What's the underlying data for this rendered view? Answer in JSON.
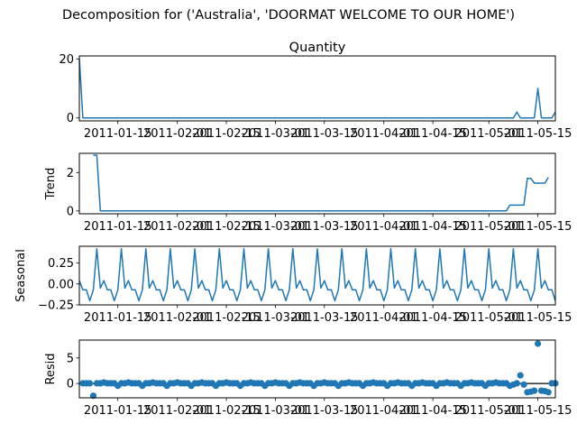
{
  "chart_data": {
    "type": "line",
    "title": "Decomposition for ('Australia', 'DOORMAT WELCOME TO OUR HOME')",
    "subtitle": "Quantity",
    "x_range": [
      "2011-01-04",
      "2011-05-20"
    ],
    "x_ticks": [
      "2011-01-15",
      "2011-02-01",
      "2011-02-15",
      "2011-03-01",
      "2011-03-15",
      "2011-04-01",
      "2011-04-15",
      "2011-05-01",
      "2011-05-15"
    ],
    "color": "#1f77b4",
    "grid": false,
    "panels": [
      {
        "name": "observed",
        "ylabel": "",
        "style": "line",
        "ylim": [
          -1,
          21
        ],
        "yticks": [
          "0",
          "20"
        ],
        "series": [
          {
            "x": "2011-01-04",
            "y": 20
          },
          {
            "x": "2011-01-05",
            "y": 0
          },
          {
            "x": "2011-05-08",
            "y": 0
          },
          {
            "x": "2011-05-09",
            "y": 2
          },
          {
            "x": "2011-05-10",
            "y": 0
          },
          {
            "x": "2011-05-14",
            "y": 0
          },
          {
            "x": "2011-05-15",
            "y": 10
          },
          {
            "x": "2011-05-16",
            "y": 0
          },
          {
            "x": "2011-05-19",
            "y": 0
          },
          {
            "x": "2011-05-20",
            "y": 2
          }
        ]
      },
      {
        "name": "trend",
        "ylabel": "Trend",
        "style": "line",
        "ylim": [
          -0.15,
          3.0
        ],
        "yticks": [
          "0",
          "2"
        ],
        "series": [
          {
            "x": "2011-01-08",
            "y": 2.9
          },
          {
            "x": "2011-01-10",
            "y": 0
          },
          {
            "x": "2011-05-06",
            "y": 0
          },
          {
            "x": "2011-05-07",
            "y": 0.3
          },
          {
            "x": "2011-05-11",
            "y": 0.3
          },
          {
            "x": "2011-05-12",
            "y": 1.7
          },
          {
            "x": "2011-05-13",
            "y": 1.7
          },
          {
            "x": "2011-05-14",
            "y": 1.45
          },
          {
            "x": "2011-05-17",
            "y": 1.45
          },
          {
            "x": "2011-05-18",
            "y": 1.75
          }
        ]
      },
      {
        "name": "seasonal",
        "ylabel": "Seasonal",
        "style": "line",
        "ylim": [
          -0.25,
          0.45
        ],
        "yticks": [
          "0.25",
          "0.00",
          "−0.25"
        ],
        "period": 7,
        "pattern": [
          0.42,
          -0.05,
          0.04,
          -0.07,
          -0.07,
          -0.2,
          -0.07
        ]
      },
      {
        "name": "resid",
        "ylabel": "Resid",
        "style": "scatter",
        "baseline": 0,
        "ylim": [
          -2.8,
          8.5
        ],
        "yticks": [
          "0",
          "5"
        ],
        "points": [
          {
            "x": "2011-01-08",
            "y": -2.4
          },
          {
            "x": "2011-05-08",
            "y": -0.2
          },
          {
            "x": "2011-05-10",
            "y": 1.6
          },
          {
            "x": "2011-05-11",
            "y": -0.2
          },
          {
            "x": "2011-05-12",
            "y": -1.7
          },
          {
            "x": "2011-05-13",
            "y": -1.6
          },
          {
            "x": "2011-05-14",
            "y": -1.4
          },
          {
            "x": "2011-05-15",
            "y": 7.8
          },
          {
            "x": "2011-05-16",
            "y": -1.4
          },
          {
            "x": "2011-05-17",
            "y": -1.5
          },
          {
            "x": "2011-05-18",
            "y": -1.7
          }
        ]
      }
    ]
  }
}
